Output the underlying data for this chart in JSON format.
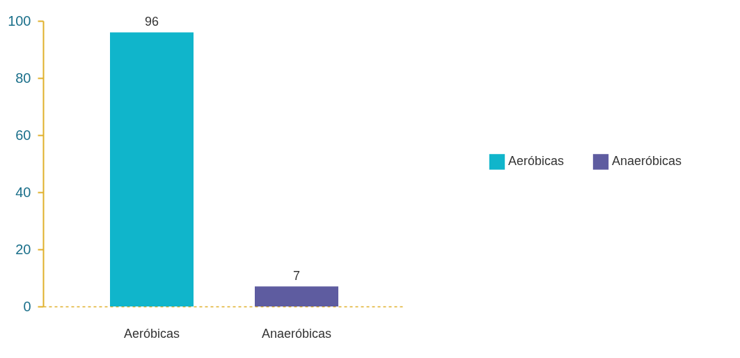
{
  "chart_data": {
    "type": "bar",
    "categories": [
      "Aeróbicas",
      "Anaeróbicas"
    ],
    "series": [
      {
        "name": "Aeróbicas",
        "color": "#10b5cb",
        "values": [
          96,
          null
        ]
      },
      {
        "name": "Anaeróbicas",
        "color": "#5e5ca0",
        "values": [
          null,
          7
        ]
      }
    ],
    "ylim": [
      0,
      100
    ],
    "yticks": [
      0,
      20,
      40,
      60,
      80,
      100
    ],
    "grid": false,
    "legend": "right",
    "data_labels": true
  }
}
